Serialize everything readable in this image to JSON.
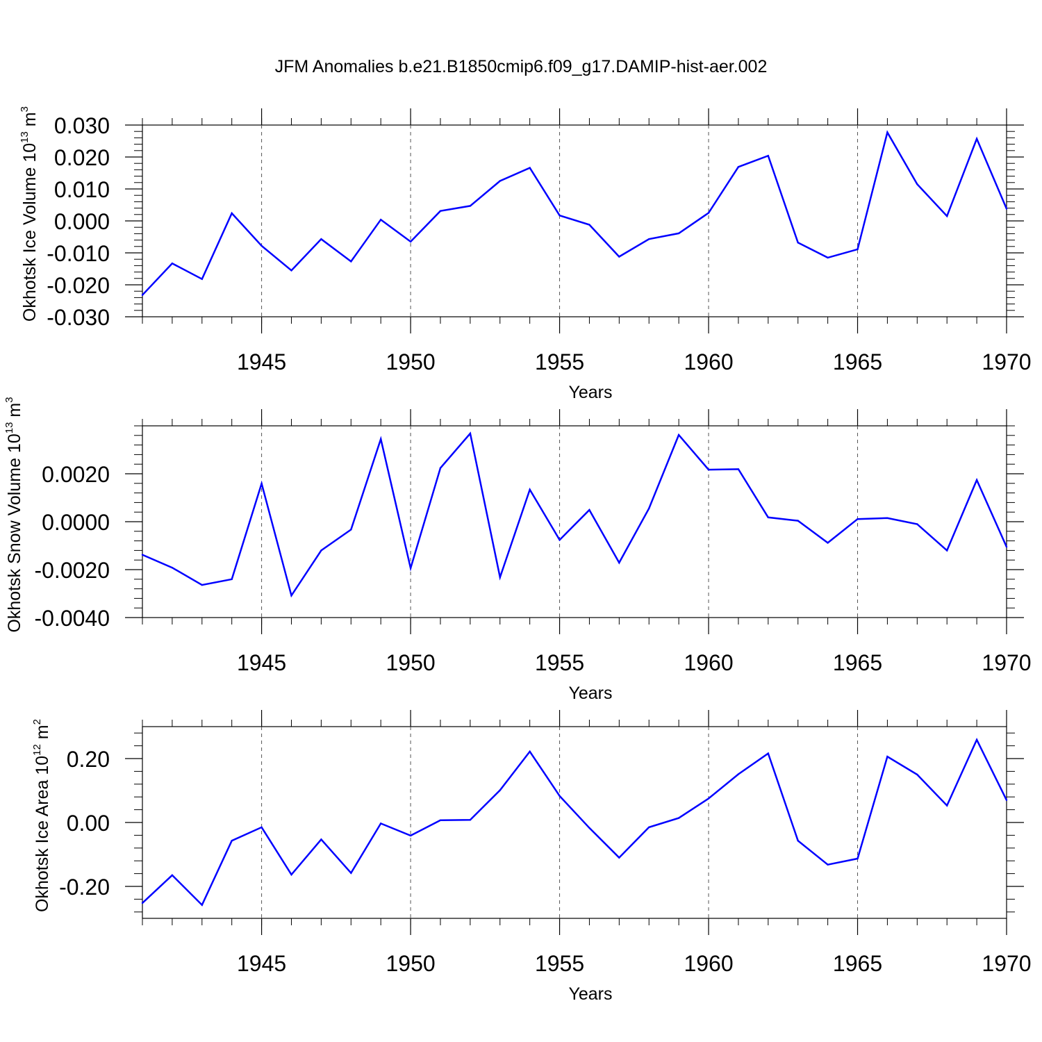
{
  "title": "JFM Anomalies b.e21.B1850cmip6.f09_g17.DAMIP-hist-aer.002",
  "style": {
    "line_color": "#0000ff",
    "grid_color": "#555555"
  },
  "chart_data": [
    {
      "type": "line",
      "name": "ice-volume",
      "xlabel": "Years",
      "ylabel": {
        "base": "Okhotsk Ice Volume 10",
        "exp": "13",
        "unit": " m",
        "unit_exp": "3"
      },
      "xlim": [
        1941,
        1970
      ],
      "ylim": [
        -0.03,
        0.03
      ],
      "x_ticks": [
        "1945",
        "1950",
        "1955",
        "1960",
        "1965",
        "1970"
      ],
      "y_ticks": [
        {
          "value": 0.03,
          "label": "0.030"
        },
        {
          "value": 0.02,
          "label": "0.020"
        },
        {
          "value": 0.01,
          "label": "0.010"
        },
        {
          "value": 0.0,
          "label": "0.000"
        },
        {
          "value": -0.01,
          "label": "-0.010"
        },
        {
          "value": -0.02,
          "label": "-0.020"
        },
        {
          "value": -0.03,
          "label": "-0.030"
        }
      ],
      "x": [
        1941,
        1942,
        1943,
        1944,
        1945,
        1946,
        1947,
        1948,
        1949,
        1950,
        1951,
        1952,
        1953,
        1954,
        1955,
        1956,
        1957,
        1958,
        1959,
        1960,
        1961,
        1962,
        1963,
        1964,
        1965,
        1966,
        1967,
        1968,
        1969,
        1970
      ],
      "values": [
        -0.0232,
        -0.0133,
        -0.0182,
        0.0024,
        -0.0078,
        -0.0155,
        -0.0057,
        -0.0127,
        0.0004,
        -0.0065,
        0.0031,
        0.0047,
        0.0125,
        0.0166,
        0.0017,
        -0.0012,
        -0.0112,
        -0.0057,
        -0.0039,
        0.0025,
        0.0169,
        0.0204,
        -0.0068,
        -0.0115,
        -0.0089,
        0.0277,
        0.0115,
        0.0015,
        0.0257,
        0.0038
      ]
    },
    {
      "type": "line",
      "name": "snow-volume",
      "xlabel": "Years",
      "ylabel": {
        "base": "Okhotsk Snow Volume 10",
        "exp": "13",
        "unit": " m",
        "unit_exp": "3"
      },
      "xlim": [
        1941,
        1970
      ],
      "ylim": [
        -0.004,
        0.004
      ],
      "x_ticks": [
        "1945",
        "1950",
        "1955",
        "1960",
        "1965",
        "1970"
      ],
      "y_ticks": [
        {
          "value": 0.002,
          "label": "0.0020"
        },
        {
          "value": 0.0,
          "label": "0.0000"
        },
        {
          "value": -0.002,
          "label": "-0.0020"
        },
        {
          "value": -0.004,
          "label": "-0.0040"
        }
      ],
      "x": [
        1941,
        1942,
        1943,
        1944,
        1945,
        1946,
        1947,
        1948,
        1949,
        1950,
        1951,
        1952,
        1953,
        1954,
        1955,
        1956,
        1957,
        1958,
        1959,
        1960,
        1961,
        1962,
        1963,
        1964,
        1965,
        1966,
        1967,
        1968,
        1969,
        1970
      ],
      "values": [
        -0.00138,
        -0.00192,
        -0.00264,
        -0.0024,
        0.00159,
        -0.00308,
        -0.0012,
        -0.00033,
        0.00345,
        -0.00194,
        0.00224,
        0.00368,
        -0.00232,
        0.00134,
        -0.00076,
        0.00049,
        -0.00171,
        0.00055,
        0.00362,
        0.00217,
        0.00219,
        0.00018,
        4e-05,
        -0.00088,
        0.00011,
        0.00015,
        -0.0001,
        -0.0012,
        0.00174,
        -0.00105
      ]
    },
    {
      "type": "line",
      "name": "ice-area",
      "xlabel": "Years",
      "ylabel": {
        "base": "Okhotsk Ice Area 10",
        "exp": "12",
        "unit": " m",
        "unit_exp": "2"
      },
      "xlim": [
        1941,
        1970
      ],
      "ylim": [
        -0.3,
        0.3
      ],
      "x_ticks": [
        "1945",
        "1950",
        "1955",
        "1960",
        "1965",
        "1970"
      ],
      "y_ticks": [
        {
          "value": 0.2,
          "label": "0.20"
        },
        {
          "value": 0.0,
          "label": "0.00"
        },
        {
          "value": -0.2,
          "label": "-0.20"
        }
      ],
      "x": [
        1941,
        1942,
        1943,
        1944,
        1945,
        1946,
        1947,
        1948,
        1949,
        1950,
        1951,
        1952,
        1953,
        1954,
        1955,
        1956,
        1957,
        1958,
        1959,
        1960,
        1961,
        1962,
        1963,
        1964,
        1965,
        1966,
        1967,
        1968,
        1969,
        1970
      ],
      "values": [
        -0.252,
        -0.165,
        -0.258,
        -0.057,
        -0.015,
        -0.163,
        -0.053,
        -0.158,
        -0.003,
        -0.041,
        0.007,
        0.008,
        0.101,
        0.222,
        0.083,
        -0.017,
        -0.11,
        -0.015,
        0.014,
        0.075,
        0.151,
        0.216,
        -0.057,
        -0.132,
        -0.113,
        0.206,
        0.15,
        0.053,
        0.259,
        0.07
      ]
    }
  ]
}
